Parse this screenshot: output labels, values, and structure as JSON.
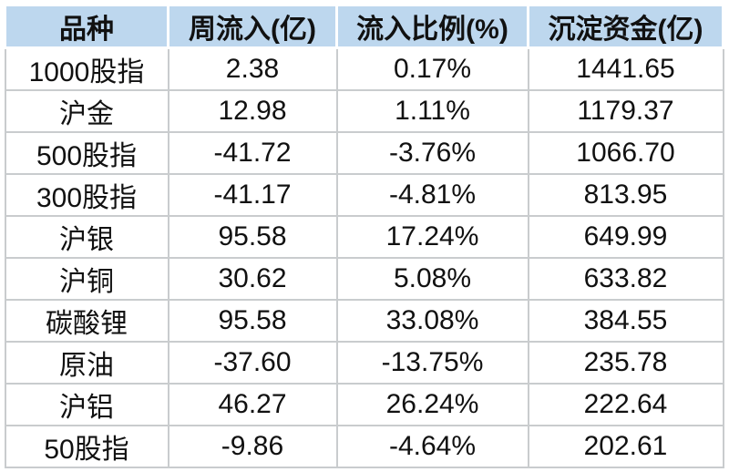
{
  "table": {
    "headers": [
      "品种",
      "周流入(亿)",
      "流入比例(%)",
      "沉淀资金(亿)"
    ],
    "rows": [
      {
        "variety": "1000股指",
        "weekly_inflow": "2.38",
        "inflow_ratio": "0.17%",
        "settled_funds": "1441.65"
      },
      {
        "variety": "沪金",
        "weekly_inflow": "12.98",
        "inflow_ratio": "1.11%",
        "settled_funds": "1179.37"
      },
      {
        "variety": "500股指",
        "weekly_inflow": "-41.72",
        "inflow_ratio": "-3.76%",
        "settled_funds": "1066.70"
      },
      {
        "variety": "300股指",
        "weekly_inflow": "-41.17",
        "inflow_ratio": "-4.81%",
        "settled_funds": "813.95"
      },
      {
        "variety": "沪银",
        "weekly_inflow": "95.58",
        "inflow_ratio": "17.24%",
        "settled_funds": "649.99"
      },
      {
        "variety": "沪铜",
        "weekly_inflow": "30.62",
        "inflow_ratio": "5.08%",
        "settled_funds": "633.82"
      },
      {
        "variety": "碳酸锂",
        "weekly_inflow": "95.58",
        "inflow_ratio": "33.08%",
        "settled_funds": "384.55"
      },
      {
        "variety": "原油",
        "weekly_inflow": "-37.60",
        "inflow_ratio": "-13.75%",
        "settled_funds": "235.78"
      },
      {
        "variety": "沪铝",
        "weekly_inflow": "46.27",
        "inflow_ratio": "26.24%",
        "settled_funds": "222.64"
      },
      {
        "variety": "50股指",
        "weekly_inflow": "-9.86",
        "inflow_ratio": "-4.64%",
        "settled_funds": "202.61"
      }
    ],
    "colors": {
      "header_bg": "#BDD7EE",
      "grid_line": "#C9CCCE",
      "text": "#111111"
    }
  },
  "chart_data": {
    "type": "table",
    "title": "",
    "columns": [
      "品种",
      "周流入(亿)",
      "流入比例(%)",
      "沉淀资金(亿)"
    ],
    "rows": [
      [
        "1000股指",
        2.38,
        0.17,
        1441.65
      ],
      [
        "沪金",
        12.98,
        1.11,
        1179.37
      ],
      [
        "500股指",
        -41.72,
        -3.76,
        1066.7
      ],
      [
        "300股指",
        -41.17,
        -4.81,
        813.95
      ],
      [
        "沪银",
        95.58,
        17.24,
        649.99
      ],
      [
        "沪铜",
        30.62,
        5.08,
        633.82
      ],
      [
        "碳酸锂",
        95.58,
        33.08,
        384.55
      ],
      [
        "原油",
        -37.6,
        -13.75,
        235.78
      ],
      [
        "沪铝",
        46.27,
        26.24,
        222.64
      ],
      [
        "50股指",
        -9.86,
        -4.64,
        202.61
      ]
    ],
    "units": {
      "weekly_inflow": "亿",
      "inflow_ratio": "%",
      "settled_funds": "亿"
    },
    "layout": {
      "header_fill": "#BDD7EE",
      "grid": true,
      "alignment": "center"
    }
  }
}
